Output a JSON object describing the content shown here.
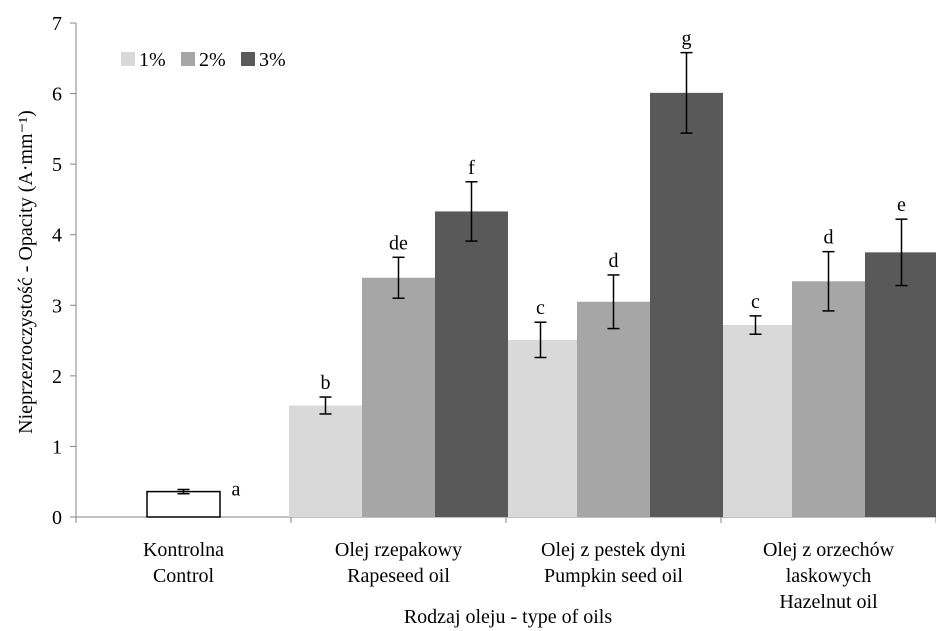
{
  "chart_data": {
    "type": "bar",
    "title": "",
    "xlabel": "Rodzaj oleju - type of oils",
    "ylabel": "Nieprzezroczystość - Opacity (A·mm⁻¹)",
    "ylim": [
      0,
      7
    ],
    "yticks": [
      0,
      1,
      2,
      3,
      4,
      5,
      6,
      7
    ],
    "grid": false,
    "legend_position": "top-left",
    "categories": [
      [
        "Kontrolna",
        "Control"
      ],
      [
        "Olej rzepakowy",
        "Rapeseed oil"
      ],
      [
        "Olej z pestek dyni",
        "Pumpkin seed oil"
      ],
      [
        "Olej z orzechów",
        "laskowych",
        "Hazelnut oil"
      ]
    ],
    "control": {
      "value": 0.36,
      "error": 0.03,
      "label": "a",
      "color": "#ffffff"
    },
    "series": [
      {
        "name": "1%",
        "color": "#d9d9d9",
        "values": [
          null,
          1.58,
          2.51,
          2.72
        ],
        "errors": [
          null,
          0.12,
          0.25,
          0.13
        ],
        "labels": [
          null,
          "b",
          "c",
          "c"
        ]
      },
      {
        "name": "2%",
        "color": "#a6a6a6",
        "values": [
          null,
          3.39,
          3.05,
          3.34
        ],
        "errors": [
          null,
          0.29,
          0.38,
          0.42
        ],
        "labels": [
          null,
          "de",
          "d",
          "d"
        ]
      },
      {
        "name": "3%",
        "color": "#595959",
        "values": [
          null,
          4.33,
          6.01,
          3.75
        ],
        "errors": [
          null,
          0.42,
          0.57,
          0.47
        ],
        "labels": [
          null,
          "f",
          "g",
          "e"
        ]
      }
    ]
  }
}
